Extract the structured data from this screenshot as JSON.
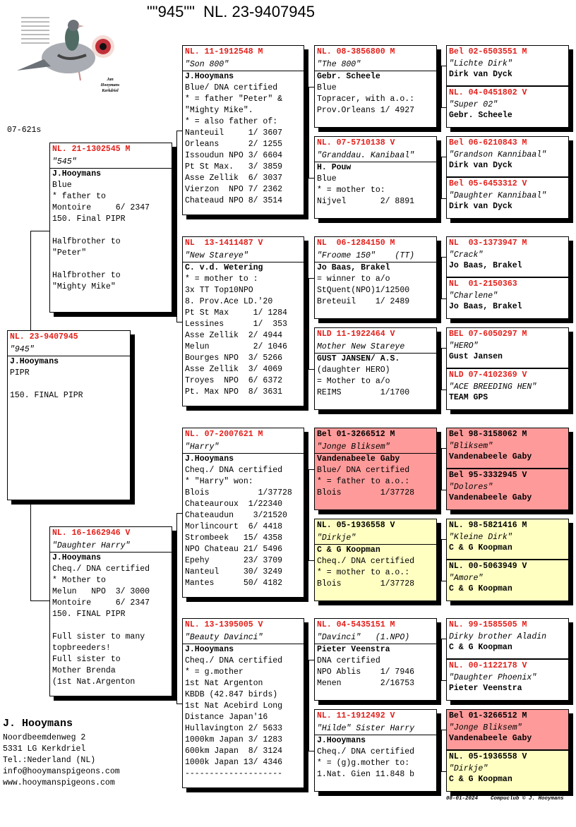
{
  "header": {
    "title": "\"\"945\"\"  NL. 23-9407945"
  },
  "logo": {
    "caption": "Jan Hooymans Kerkdriel"
  },
  "code": "07-621s",
  "colors": {
    "ring": "#e3201b",
    "pink": "#ff9a9a",
    "yellow": "#ffffc2"
  },
  "pedigree": {
    "subject": {
      "ring": "NL. 23-9407945",
      "name": "\"945\"",
      "lines": [
        "J.Hooymans",
        "PIPR",
        "",
        "150. FINAL PIPR"
      ]
    },
    "sire": {
      "ring": "NL. 21-1302545 M",
      "name": "\"545\"",
      "lines": [
        "J.Hooymans",
        "Blue",
        "* father to",
        "Montoire     6/ 2347",
        "150. Final PIPR",
        "",
        "Halfbrother to",
        "\"Peter\"",
        "",
        "Halfbrother to",
        "\"Mighty Mike\""
      ]
    },
    "dam": {
      "ring": "NL. 16-1662946 V",
      "name": "\"Daughter Harry\"",
      "lines": [
        "J.Hooymans",
        "Cheq./ DNA certified",
        "* Mother to",
        "Melun   NPO  3/ 3000",
        "Montoire     6/ 2347",
        "150. FINAL PIPR",
        "",
        "Full sister to many",
        "topbreeders!",
        "Full sister to",
        "Mother Brenda",
        "(1st Nat.Argenton"
      ]
    },
    "gen3": [
      {
        "ring": "NL. 11-1912548 M",
        "name": "\"Son 800\"",
        "lines": [
          "J.Hooymans",
          "Blue/ DNA certified",
          "* = father \"Peter\" &",
          "\"Mighty Mike\".",
          "* = also father of:",
          "Nanteuil     1/ 3607",
          "Orleans      2/ 1255",
          "Issoudun NPO 3/ 6604",
          "Pt St Max.   3/ 3859",
          "Asse Zellik  6/ 3037",
          "Vierzon  NPO 7/ 2362",
          "Chateaud NPO 8/ 3514"
        ]
      },
      {
        "ring": "NL  13-1411487 V",
        "name": "\"New Stareye\"",
        "lines": [
          "C. v.d. Wetering",
          "* = mother to :",
          "3x TT Top10NPO",
          "8. Prov.Ace LD.'20",
          "Pt St Max     1/ 1284",
          "Lessines      1/  353",
          "Asse Zellik  2/ 4944",
          "Melun         2/ 1046",
          "Bourges NPO  3/ 5266",
          "Asse Zellik  3/ 4069",
          "Troyes  NPO  6/ 6372",
          "Pt. Max NPO  8/ 3631"
        ]
      },
      {
        "ring": "NL. 07-2007621 M",
        "name": "\"Harry\"",
        "lines": [
          "J.Hooymans",
          "Cheq./ DNA certified",
          "* \"Harry\" won:",
          "Blois          1/37728",
          "Chateauroux  1/22340",
          "Chateaudun    3/21520",
          "Morlincourt  6/ 4418",
          "Strombeek   15/ 4358",
          "NPO Chateau 21/ 5496",
          "Epehy       23/ 3709",
          "Nanteul     30/ 3249",
          "Mantes      50/ 4182"
        ]
      },
      {
        "ring": "NL. 13-1395005 V",
        "name": "\"Beauty Davinci\"",
        "lines": [
          "J.Hooymans",
          "Cheq./ DNA certified",
          "* = g.mother",
          "1st Nat Argenton",
          "KBDB (42.847 birds)",
          "1st Nat Acebird Long",
          "Distance Japan'16",
          "Hullavington 2/ 5633",
          "1000km Japan 3/ 1283",
          "600km Japan  8/ 3124",
          "1000k Japan 13/ 4346",
          "--------------------"
        ]
      }
    ],
    "gen4": [
      {
        "ring": "NL. 08-3856800 M",
        "name": "\"The 800\"",
        "lines": [
          "Gebr. Scheele",
          "Blue",
          "Topracer, with a.o.:",
          "Prov.Orleans 1/ 4927"
        ]
      },
      {
        "ring": "NL. 07-5710138 V",
        "name": "\"Granddau. Kanibaal\"",
        "lines": [
          "H. Pouw",
          "Blue",
          "* = mother to:",
          "Nijvel       2/ 8891"
        ]
      },
      {
        "ring": "NL  06-1284150 M",
        "name": "\"Froome 150\"    (TT)",
        "lines": [
          "Jo Baas, Brakel",
          "= winner to a/o",
          "StQuent(NPO)1/12500",
          "Breteuil    1/ 2489"
        ]
      },
      {
        "ring": "NLD 11-1922464 V",
        "name": "Mother New Stareye",
        "lines": [
          "GUST JANSEN/ A.S.",
          "(daughter HERO)",
          "= Mother to a/o",
          "REIMS        1/1700"
        ]
      },
      {
        "ring": "Bel 01-3266512 M",
        "name": "\"Jonge Bliksem\"",
        "highlight": "pink",
        "lines": [
          "Vandenabeele Gaby",
          "Blue/ DNA certified",
          "* = father to a.o.:",
          "Blois        1/37728"
        ]
      },
      {
        "ring": "NL. 05-1936558 V",
        "name": "\"Dirkje\"",
        "highlight": "yellow",
        "lines": [
          "C & G Koopman",
          "Cheq./ DNA certified",
          "* = mother to a.o.:",
          "Blois        1/37728"
        ]
      },
      {
        "ring": "NL. 04-5435151 M",
        "name": "\"Davinci\"   (1.NPO)",
        "lines": [
          "Pieter Veenstra",
          "DNA certified",
          "NPO Ablis    1/ 7946",
          "Menen        2/16753"
        ]
      },
      {
        "ring": "NL. 11-1912492 V",
        "name": "\"Hilde\" Sister Harry",
        "lines": [
          "J.Hooymans",
          "Cheq./ DNA certified",
          "* = (g)g.mother to:",
          "1.Nat. Gien 11.848 b"
        ]
      }
    ],
    "gen5": [
      {
        "ring": "Bel 02-6503551 M",
        "name": "\"Lichte Dirk\"",
        "breeder": "Dirk van Dyck"
      },
      {
        "ring": "NL. 04-0451802 V",
        "name": "\"Super 02\"",
        "breeder": "Gebr. Scheele"
      },
      {
        "ring": "Bel 06-6210843 M",
        "name": "\"Grandson Kannibaal\"",
        "breeder": "Dirk van Dyck"
      },
      {
        "ring": "Bel 05-6453312 V",
        "name": "\"Daughter Kannibaal\"",
        "breeder": "Dirk van Dyck"
      },
      {
        "ring": "NL  03-1373947 M",
        "name": "\"Crack\"",
        "breeder": "Jo Baas, Brakel"
      },
      {
        "ring": "NL  01-2150363",
        "name": "\"Charlene\"",
        "breeder": "Jo Baas, Brakel"
      },
      {
        "ring": "BEL 07-6050297 M",
        "name": "\"HERO\"",
        "breeder": "Gust Jansen"
      },
      {
        "ring": "NLD 07-4102369 V",
        "name": "\"ACE BREEDING HEN\"",
        "breeder": "TEAM GPS"
      },
      {
        "ring": "Bel 98-3158062 M",
        "name": "\"Bliksem\"",
        "breeder": "Vandenabeele Gaby",
        "highlight": "pink"
      },
      {
        "ring": "Bel 95-3332945 V",
        "name": "\"Dolores\"",
        "breeder": "Vandenabeele Gaby",
        "highlight": "pink"
      },
      {
        "ring": "NL. 98-5821416 M",
        "name": "\"Kleine Dirk\"",
        "breeder": "C & G Koopman",
        "highlight": "yellow"
      },
      {
        "ring": "NL. 00-5063949 V",
        "name": "\"Amore\"",
        "breeder": "C & G Koopman",
        "highlight": "yellow"
      },
      {
        "ring": "NL. 99-1585505 M",
        "name": "Dirky brother Aladin",
        "breeder": "C & G Koopman"
      },
      {
        "ring": "NL. 00-1122178 V",
        "name": "\"Daughter Phoenix\"",
        "breeder": "Pieter Veenstra"
      },
      {
        "ring": "Bel 01-3266512 M",
        "name": "\"Jonge Bliksem\"",
        "breeder": "Vandenabeele Gaby",
        "highlight": "pink"
      },
      {
        "ring": "NL. 05-1936558 V",
        "name": "\"Dirkje\"",
        "breeder": "C & G Koopman",
        "highlight": "yellow"
      }
    ]
  },
  "breeder": {
    "name": "J. Hooymans",
    "address": "Noordbeemdenweg 2",
    "city": "5331 LG  Kerkdriel",
    "phone": "Tel.:Nederland (NL)",
    "email": "info@hooymanspigeons.com",
    "website": "www.hooymanspigeons.com"
  },
  "footer": {
    "text": "08-01-2024    Compuclub © J. Hooymans"
  }
}
